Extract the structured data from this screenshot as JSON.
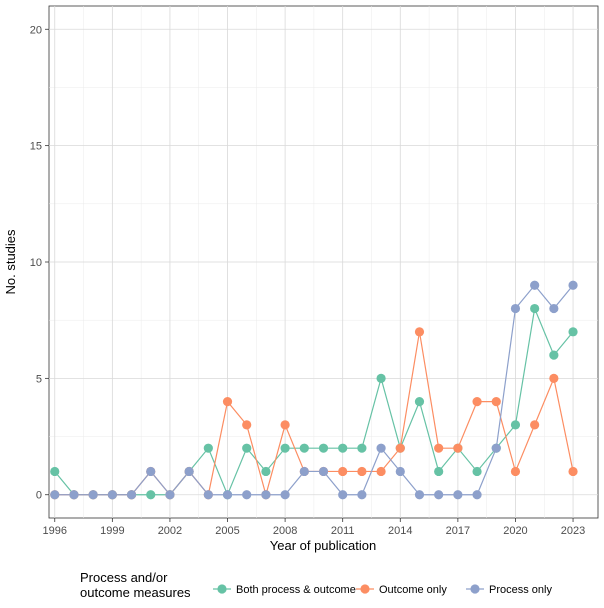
{
  "chart_data": {
    "type": "line",
    "xlabel": "Year of publication",
    "ylabel": "No. studies",
    "xlim": [
      1995.7,
      2024.3
    ],
    "ylim": [
      -1,
      21
    ],
    "x_ticks": [
      1996,
      1999,
      2002,
      2005,
      2008,
      2011,
      2014,
      2017,
      2020,
      2023
    ],
    "y_ticks": [
      0,
      5,
      10,
      15,
      20
    ],
    "grid": true,
    "legend": {
      "title_line1": "Process and/or",
      "title_line2": "outcome measures",
      "placement": "bottom"
    },
    "x": [
      1996,
      1997,
      1998,
      1999,
      2000,
      2001,
      2002,
      2003,
      2004,
      2005,
      2006,
      2007,
      2008,
      2009,
      2010,
      2011,
      2012,
      2013,
      2014,
      2015,
      2016,
      2017,
      2018,
      2019,
      2020,
      2021,
      2022,
      2023
    ],
    "series": [
      {
        "name": "Both process & outcome",
        "color": "#66c2a5",
        "values": [
          1,
          0,
          0,
          0,
          0,
          0,
          0,
          1,
          2,
          0,
          2,
          1,
          2,
          2,
          2,
          2,
          2,
          5,
          2,
          4,
          1,
          2,
          1,
          2,
          3,
          8,
          6,
          7
        ]
      },
      {
        "name": "Outcome only",
        "color": "#fc8d62",
        "values": [
          0,
          0,
          0,
          0,
          0,
          1,
          0,
          1,
          0,
          4,
          3,
          0,
          3,
          1,
          1,
          1,
          1,
          1,
          2,
          7,
          2,
          2,
          4,
          4,
          1,
          3,
          5,
          1
        ]
      },
      {
        "name": "Process only",
        "color": "#8da0cb",
        "values": [
          0,
          0,
          0,
          0,
          0,
          1,
          0,
          1,
          0,
          0,
          0,
          0,
          0,
          1,
          1,
          0,
          0,
          2,
          1,
          0,
          0,
          0,
          0,
          2,
          8,
          9,
          8,
          9
        ]
      }
    ]
  }
}
